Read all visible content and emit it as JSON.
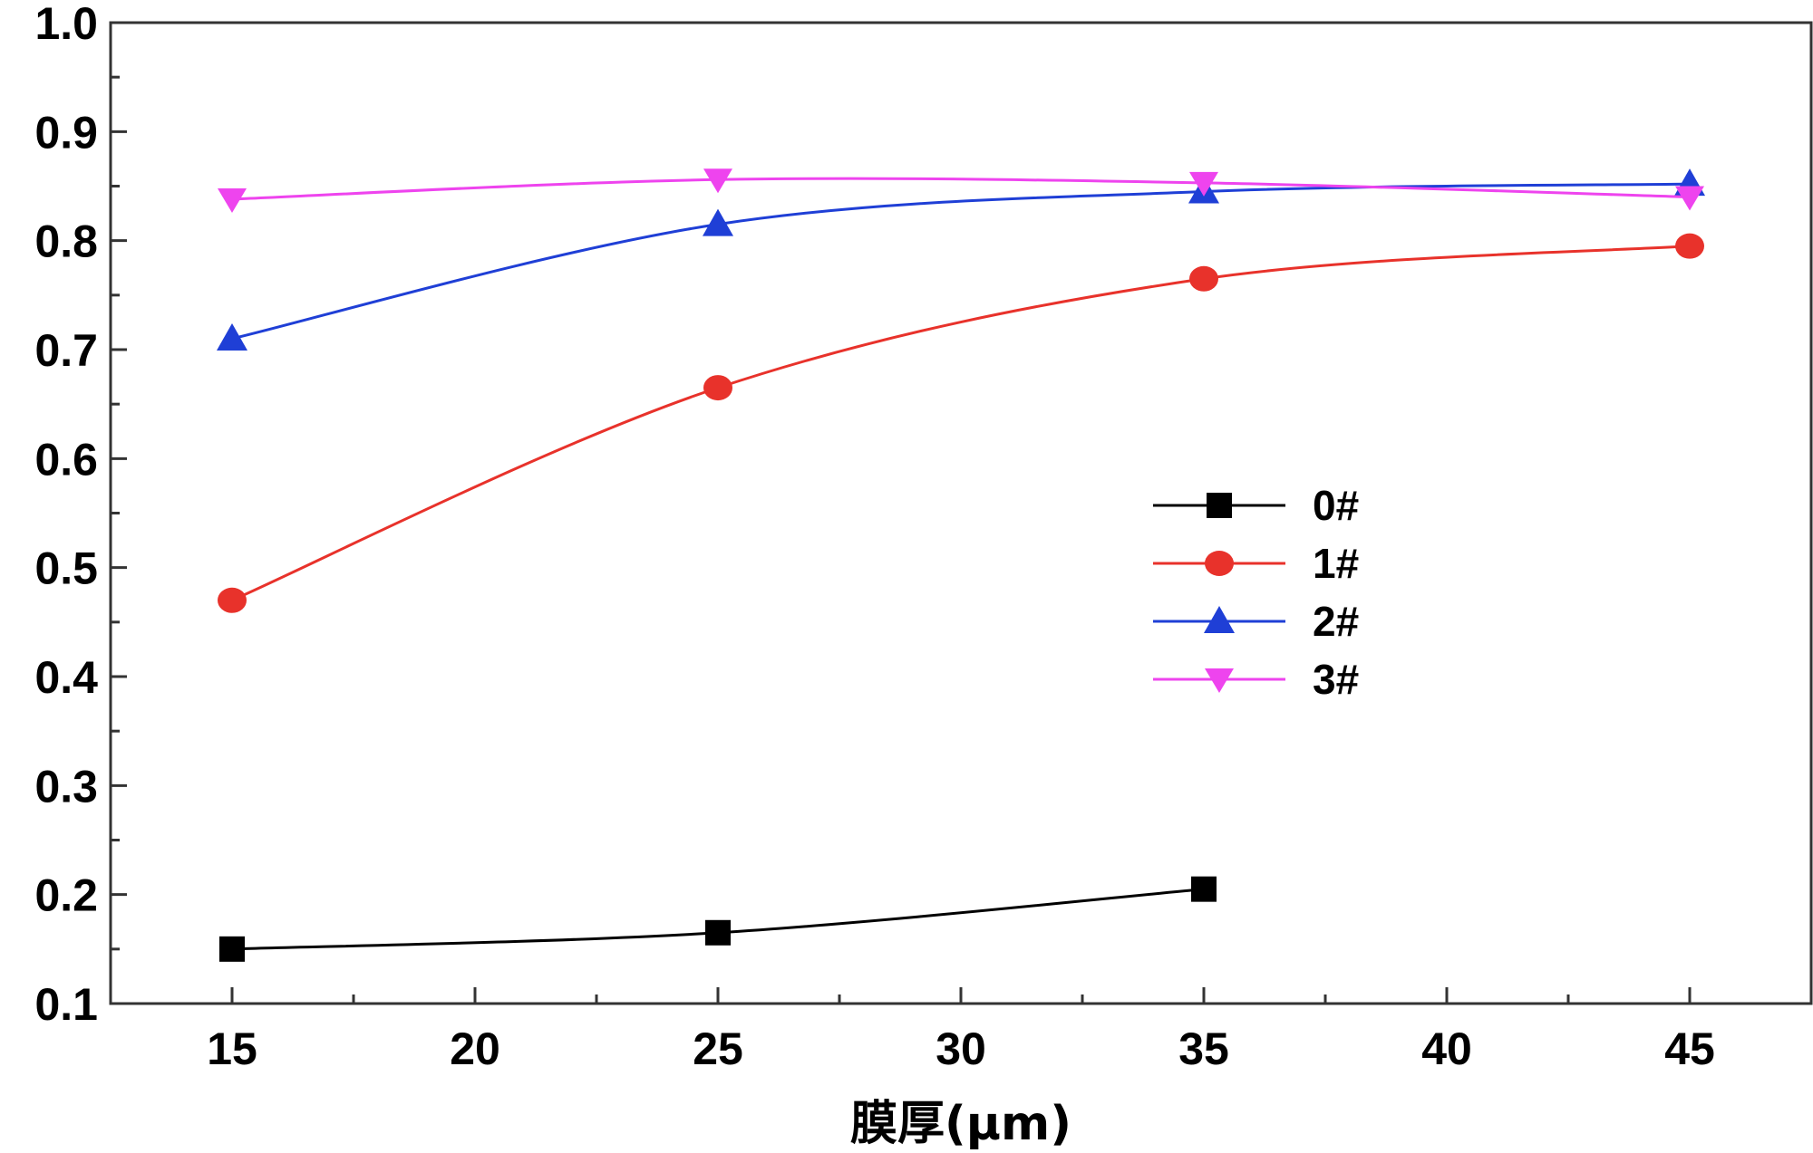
{
  "chart_data": {
    "type": "line",
    "title": "",
    "xlabel": "膜厚(μm)",
    "ylabel": "",
    "xlim": [
      12.5,
      47.5
    ],
    "ylim": [
      0.1,
      1.0
    ],
    "xticks": [
      15,
      20,
      25,
      30,
      35,
      40,
      45
    ],
    "xtick_labels": [
      "15",
      "20",
      "25",
      "30",
      "35",
      "40",
      "45"
    ],
    "yticks": [
      0.1,
      0.2,
      0.3,
      0.4,
      0.5,
      0.6,
      0.7,
      0.8,
      0.9,
      1.0
    ],
    "ytick_labels": [
      "0.1",
      "0.2",
      "0.3",
      "0.4",
      "0.5",
      "0.6",
      "0.7",
      "0.8",
      "0.9",
      "1.0"
    ],
    "grid": false,
    "legend_position": "center-right",
    "series": [
      {
        "name": "0#",
        "color": "#000000",
        "marker": "square",
        "x": [
          15,
          25,
          35
        ],
        "values": [
          0.15,
          0.165,
          0.205
        ]
      },
      {
        "name": "1#",
        "color": "#e8322b",
        "marker": "circle",
        "x": [
          15,
          25,
          35,
          45
        ],
        "values": [
          0.47,
          0.665,
          0.765,
          0.795
        ]
      },
      {
        "name": "2#",
        "color": "#1f3fd6",
        "marker": "triangle-up",
        "x": [
          15,
          25,
          35,
          45
        ],
        "values": [
          0.71,
          0.815,
          0.845,
          0.852
        ]
      },
      {
        "name": "3#",
        "color": "#ee44ee",
        "marker": "triangle-down",
        "x": [
          15,
          25,
          35,
          45
        ],
        "values": [
          0.838,
          0.856,
          0.853,
          0.84
        ]
      }
    ]
  }
}
